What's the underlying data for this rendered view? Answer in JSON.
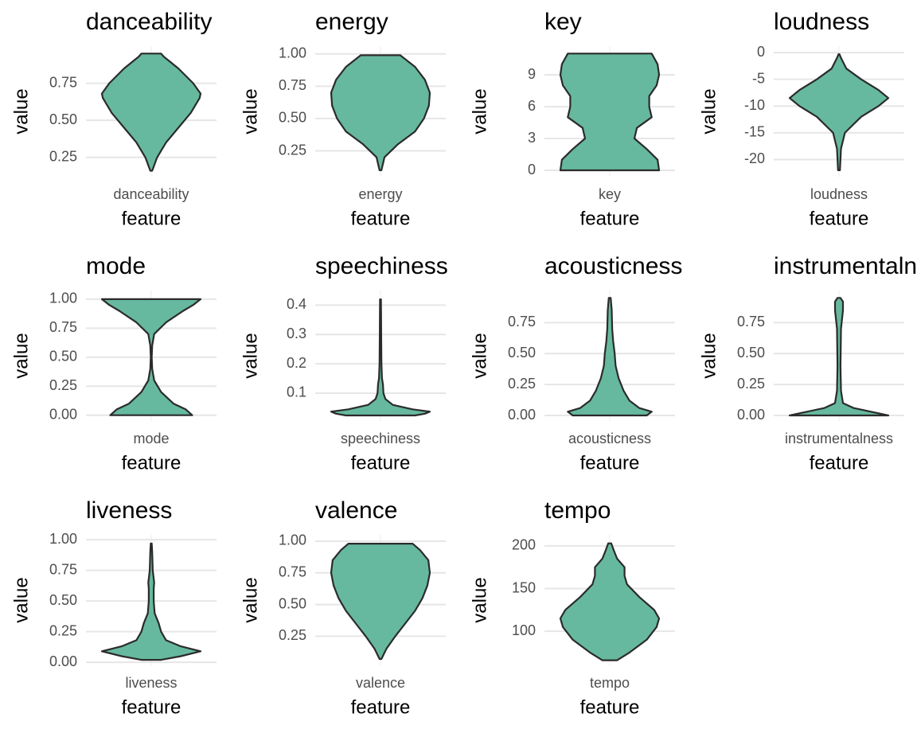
{
  "chart_data": [
    {
      "type": "violin",
      "title": "danceability",
      "x_label": "feature",
      "y_label": "value",
      "categories": [
        "danceability"
      ],
      "color": "#66b99f",
      "edge_color": "#2b2b2b",
      "grid": true,
      "ylim": [
        0.12,
        1.0
      ],
      "yticks": [
        0.25,
        {
          "value": 0.5,
          "label": "0.50"
        },
        0.75
      ],
      "y": [
        0.16,
        0.25,
        0.35,
        0.45,
        0.55,
        0.65,
        0.68,
        0.75,
        0.85,
        0.93,
        0.95
      ],
      "width": [
        0.02,
        0.12,
        0.3,
        0.55,
        0.8,
        0.98,
        1,
        0.85,
        0.55,
        0.25,
        0.2
      ]
    },
    {
      "type": "violin",
      "title": "energy",
      "x_label": "feature",
      "y_label": "value",
      "categories": [
        "energy"
      ],
      "color": "#66b99f",
      "edge_color": "#2b2b2b",
      "grid": true,
      "ylim": [
        0.05,
        1.06
      ],
      "yticks": [
        0.25,
        {
          "value": 0.5,
          "label": "0.50"
        },
        0.75,
        {
          "value": 1,
          "label": "1.00"
        }
      ],
      "y": [
        0.1,
        0.2,
        0.3,
        0.4,
        0.5,
        0.6,
        0.7,
        0.8,
        0.9,
        0.99
      ],
      "width": [
        0.02,
        0.08,
        0.35,
        0.7,
        0.88,
        0.98,
        1,
        0.9,
        0.7,
        0.4
      ]
    },
    {
      "type": "violin",
      "title": "key",
      "x_label": "feature",
      "y_label": "value",
      "categories": [
        "key"
      ],
      "color": "#66b99f",
      "edge_color": "#2b2b2b",
      "grid": true,
      "ylim": [
        -0.6,
        11.7
      ],
      "yticks": [
        0,
        3,
        6,
        9
      ],
      "y": [
        0,
        1,
        2,
        3,
        4,
        5,
        6,
        7,
        8,
        9,
        10,
        11
      ],
      "width": [
        1,
        0.97,
        0.75,
        0.5,
        0.55,
        0.85,
        0.8,
        0.8,
        0.95,
        1,
        0.97,
        0.85
      ]
    },
    {
      "type": "violin",
      "title": "loudness",
      "x_label": "feature",
      "y_label": "value",
      "categories": [
        "loudness"
      ],
      "color": "#66b99f",
      "edge_color": "#2b2b2b",
      "grid": true,
      "ylim": [
        -23.2,
        1.2
      ],
      "yticks": [
        -20,
        -15,
        -10,
        -5,
        0
      ],
      "y": [
        -22,
        -18,
        -15,
        -12,
        -10,
        -8.5,
        -7,
        -5,
        -3,
        -1,
        -0.3
      ],
      "width": [
        0.02,
        0.04,
        0.12,
        0.45,
        0.8,
        1,
        0.8,
        0.45,
        0.15,
        0.04,
        0.01
      ]
    },
    {
      "type": "violin",
      "title": "mode",
      "x_label": "feature",
      "y_label": "value",
      "categories": [
        "mode"
      ],
      "color": "#66b99f",
      "edge_color": "#2b2b2b",
      "grid": true,
      "ylim": [
        -0.05,
        1.075
      ],
      "yticks": [
        {
          "value": 0,
          "label": "0.00"
        },
        0.25,
        {
          "value": 0.5,
          "label": "0.50"
        },
        0.75,
        {
          "value": 1,
          "label": "1.00"
        }
      ],
      "y": [
        0,
        0.05,
        0.1,
        0.2,
        0.3,
        0.4,
        0.5,
        0.6,
        0.7,
        0.8,
        0.9,
        0.95,
        1
      ],
      "width": [
        0.83,
        0.7,
        0.45,
        0.2,
        0.06,
        0.02,
        0.01,
        0.02,
        0.06,
        0.3,
        0.65,
        0.85,
        1
      ]
    },
    {
      "type": "violin",
      "title": "speechiness",
      "x_label": "feature",
      "y_label": "value",
      "categories": [
        "speechiness"
      ],
      "color": "#66b99f",
      "edge_color": "#2b2b2b",
      "grid": true,
      "ylim": [
        0.005,
        0.45
      ],
      "yticks": [
        0.1,
        0.2,
        0.3,
        0.4
      ],
      "y": [
        0.024,
        0.03,
        0.037,
        0.045,
        0.06,
        0.08,
        0.1,
        0.13,
        0.15,
        0.2,
        0.3,
        0.42
      ],
      "width": [
        0.7,
        0.9,
        1,
        0.65,
        0.25,
        0.1,
        0.06,
        0.05,
        0.03,
        0.02,
        0.015,
        0.01
      ]
    },
    {
      "type": "violin",
      "title": "acousticness",
      "x_label": "feature",
      "y_label": "value",
      "categories": [
        "acousticness"
      ],
      "color": "#66b99f",
      "edge_color": "#2b2b2b",
      "grid": true,
      "ylim": [
        -0.045,
        1.01
      ],
      "yticks": [
        {
          "value": 0,
          "label": "0.00"
        },
        0.25,
        {
          "value": 0.5,
          "label": "0.50"
        },
        0.75
      ],
      "y": [
        0,
        0.03,
        0.06,
        0.12,
        0.2,
        0.3,
        0.4,
        0.5,
        0.6,
        0.7,
        0.85,
        0.95
      ],
      "width": [
        0.75,
        0.85,
        0.6,
        0.4,
        0.28,
        0.18,
        0.12,
        0.1,
        0.07,
        0.05,
        0.04,
        0.02
      ]
    },
    {
      "type": "violin",
      "title": "instrumentalness",
      "x_label": "feature",
      "y_label": "value",
      "categories": [
        "instrumentalness"
      ],
      "color": "#66b99f",
      "edge_color": "#2b2b2b",
      "grid": true,
      "ylim": [
        -0.045,
        1.01
      ],
      "yticks": [
        {
          "value": 0,
          "label": "0.00"
        },
        0.25,
        {
          "value": 0.5,
          "label": "0.50"
        },
        0.75
      ],
      "y": [
        0,
        0.03,
        0.06,
        0.1,
        0.2,
        0.4,
        0.7,
        0.85,
        0.92,
        0.95
      ],
      "width": [
        1,
        0.65,
        0.3,
        0.08,
        0.04,
        0.03,
        0.04,
        0.08,
        0.08,
        0.03
      ]
    },
    {
      "type": "violin",
      "title": "liveness",
      "x_label": "feature",
      "y_label": "value",
      "categories": [
        "liveness"
      ],
      "color": "#66b99f",
      "edge_color": "#2b2b2b",
      "grid": true,
      "ylim": [
        -0.025,
        1.04
      ],
      "yticks": [
        {
          "value": 0,
          "label": "0.00"
        },
        0.25,
        {
          "value": 0.5,
          "label": "0.50"
        },
        0.75,
        {
          "value": 1,
          "label": "1.00"
        }
      ],
      "y": [
        0.02,
        0.05,
        0.09,
        0.13,
        0.18,
        0.25,
        0.32,
        0.4,
        0.5,
        0.6,
        0.65,
        0.75,
        0.9,
        0.97
      ],
      "width": [
        0.2,
        0.6,
        1,
        0.6,
        0.3,
        0.2,
        0.15,
        0.07,
        0.05,
        0.05,
        0.06,
        0.03,
        0.02,
        0.01
      ]
    },
    {
      "type": "violin",
      "title": "valence",
      "x_label": "feature",
      "y_label": "value",
      "categories": [
        "valence"
      ],
      "color": "#66b99f",
      "edge_color": "#2b2b2b",
      "grid": true,
      "ylim": [
        0.02,
        1.05
      ],
      "yticks": [
        0.25,
        {
          "value": 0.5,
          "label": "0.50"
        },
        0.75,
        {
          "value": 1,
          "label": "1.00"
        }
      ],
      "y": [
        0.07,
        0.15,
        0.25,
        0.35,
        0.45,
        0.55,
        0.65,
        0.75,
        0.85,
        0.93,
        0.98
      ],
      "width": [
        0.02,
        0.12,
        0.3,
        0.5,
        0.7,
        0.85,
        0.95,
        1,
        0.97,
        0.8,
        0.65
      ]
    },
    {
      "type": "violin",
      "title": "tempo",
      "x_label": "feature",
      "y_label": "value",
      "categories": [
        "tempo"
      ],
      "color": "#66b99f",
      "edge_color": "#2b2b2b",
      "grid": true,
      "ylim": [
        60,
        213
      ],
      "yticks": [
        100,
        150,
        200
      ],
      "y": [
        66,
        75,
        90,
        105,
        115,
        125,
        140,
        155,
        165,
        175,
        185,
        195,
        203
      ],
      "width": [
        0.15,
        0.4,
        0.75,
        0.95,
        1,
        0.9,
        0.6,
        0.35,
        0.3,
        0.3,
        0.15,
        0.08,
        0.03
      ]
    }
  ]
}
